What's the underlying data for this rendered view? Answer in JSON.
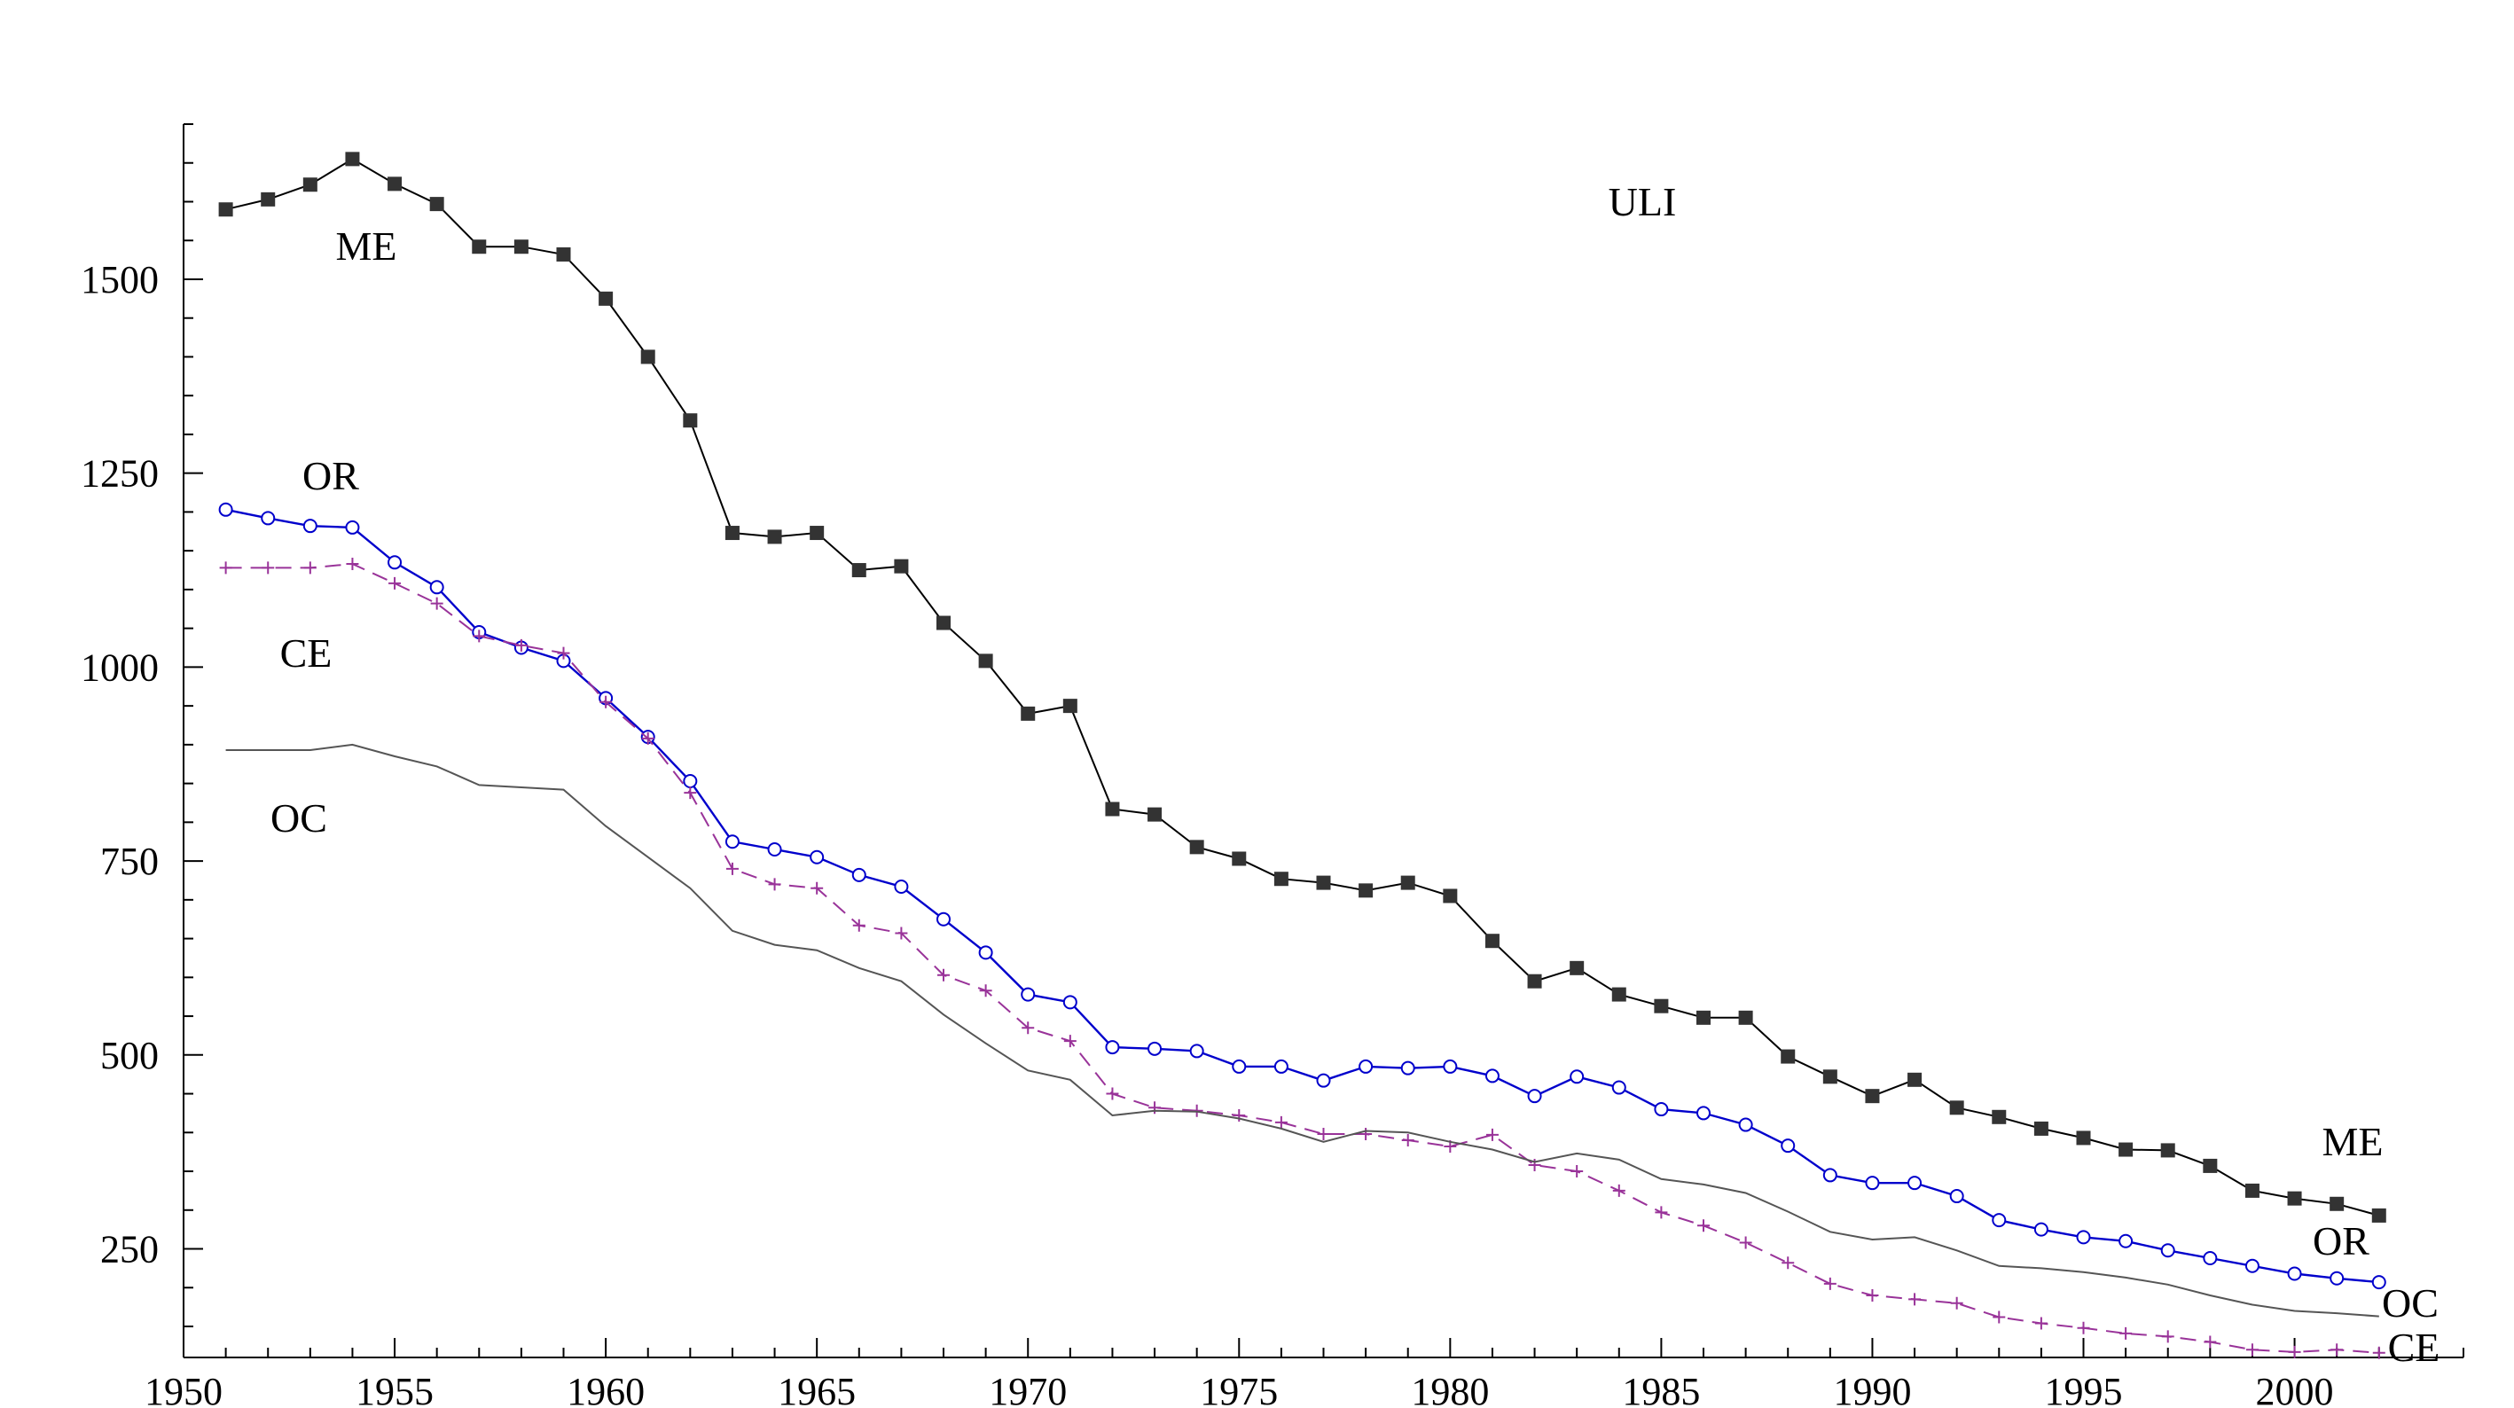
{
  "chart_data": {
    "type": "line",
    "title": "ULI",
    "xlabel": "",
    "ylabel": "",
    "xlim": [
      1950,
      2004
    ],
    "ylim": [
      110,
      1700
    ],
    "x_ticks": [
      1950,
      1955,
      1960,
      1965,
      1970,
      1975,
      1980,
      1985,
      1990,
      1995,
      2000
    ],
    "y_ticks": [
      250,
      500,
      750,
      1000,
      1250,
      1500
    ],
    "grid": false,
    "annotations": [
      "ME",
      "OR",
      "CE",
      "OC",
      "ME",
      "OR",
      "OC",
      "CE"
    ],
    "x": [
      1951,
      1952,
      1953,
      1954,
      1955,
      1956,
      1957,
      1958,
      1959,
      1960,
      1961,
      1962,
      1963,
      1964,
      1965,
      1966,
      1967,
      1968,
      1969,
      1970,
      1971,
      1972,
      1973,
      1974,
      1975,
      1976,
      1977,
      1978,
      1979,
      1980,
      1981,
      1982,
      1983,
      1984,
      1985,
      1986,
      1987,
      1988,
      1989,
      1990,
      1991,
      1992,
      1993,
      1994,
      1995,
      1996,
      1997,
      1998,
      1999,
      2000,
      2001,
      2002
    ],
    "series": [
      {
        "name": "ME",
        "color": "#000000",
        "marker": "filled-square",
        "values": [
          1590,
          1603,
          1622,
          1655,
          1623,
          1597,
          1542,
          1542,
          1532,
          1475,
          1400,
          1318,
          1173,
          1168,
          1173,
          1125,
          1130,
          1057,
          1008,
          940,
          950,
          817,
          810,
          768,
          753,
          727,
          722,
          712,
          722,
          705,
          647,
          595,
          612,
          578,
          563,
          548,
          548,
          498,
          472,
          447,
          468,
          432,
          420,
          405,
          393,
          378,
          377,
          357,
          325,
          315,
          308,
          293
        ]
      },
      {
        "name": "OR",
        "color": "#0000cc",
        "marker": "circle",
        "values": [
          1203,
          1192,
          1182,
          1180,
          1135,
          1103,
          1045,
          1025,
          1008,
          960,
          910,
          853,
          775,
          765,
          755,
          732,
          717,
          675,
          632,
          578,
          568,
          510,
          508,
          505,
          485,
          485,
          467,
          485,
          483,
          485,
          473,
          447,
          472,
          458,
          430,
          425,
          410,
          383,
          345,
          335,
          335,
          318,
          287,
          275,
          265,
          260,
          248,
          238,
          228,
          218,
          212,
          207
        ]
      },
      {
        "name": "CE",
        "color": "#993399",
        "marker": "plus",
        "values": [
          1128,
          1128,
          1128,
          1133,
          1108,
          1082,
          1040,
          1028,
          1018,
          955,
          908,
          838,
          740,
          720,
          715,
          667,
          657,
          603,
          583,
          535,
          518,
          450,
          432,
          428,
          422,
          413,
          398,
          398,
          390,
          382,
          397,
          358,
          350,
          325,
          297,
          280,
          258,
          232,
          205,
          190,
          185,
          180,
          162,
          154,
          148,
          141,
          137,
          130,
          120,
          117,
          120,
          116
        ]
      },
      {
        "name": "OC",
        "color": "#555555",
        "marker": "none",
        "values": [
          893,
          893,
          893,
          900,
          885,
          872,
          848,
          845,
          842,
          795,
          755,
          715,
          660,
          642,
          635,
          612,
          595,
          552,
          515,
          480,
          468,
          422,
          428,
          427,
          418,
          405,
          388,
          402,
          400,
          388,
          378,
          362,
          373,
          365,
          340,
          333,
          322,
          298,
          272,
          262,
          265,
          248,
          228,
          225,
          220,
          213,
          204,
          190,
          178,
          170,
          167,
          163
        ]
      }
    ]
  }
}
